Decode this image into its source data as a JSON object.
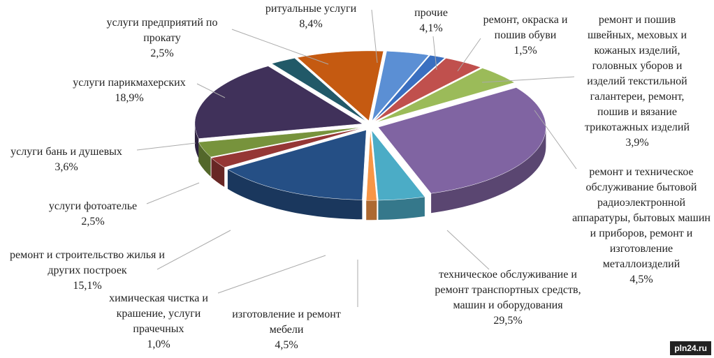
{
  "chart_data": {
    "type": "pie",
    "categories": [
      "прочие",
      "ремонт, окраска и пошив обуви",
      "ремонт и пошив швейных, меховых и кожаных изделий, головных уборов и изделий текстильной галантереи, ремонт, пошив и вязание трикотажных изделий",
      "ремонт и техническое обслуживание бытовой радиоэлектронной аппаратуры, бытовых машин и приборов, ремонт и изготовление металлоизделий",
      "техническое обслуживание и ремонт транспортных средств, машин и оборудования",
      "изготовление и ремонт мебели",
      "химическая чистка и крашение, услуги прачечных",
      "ремонт и строительство жилья и других построек",
      "услуги фотоателье",
      "услуги бань и душевых",
      "услуги парикмахерских",
      "услуги предприятий по прокату",
      "ритуальные услуги"
    ],
    "values": [
      4.1,
      1.5,
      3.9,
      4.5,
      29.5,
      4.5,
      1.0,
      15.1,
      2.5,
      3.6,
      18.9,
      2.5,
      8.4
    ],
    "value_labels": [
      "4,1%",
      "1,5%",
      "3,9%",
      "4,5%",
      "29,5%",
      "4,5%",
      "1,0%",
      "15,1%",
      "2,5%",
      "3,6%",
      "18,9%",
      "2,5%",
      "8,4%"
    ],
    "colors": [
      "#5b8fd4",
      "#3a6fc0",
      "#c0504d",
      "#9bbb59",
      "#8064a2",
      "#4bacc6",
      "#f79646",
      "#254f85",
      "#953735",
      "#77933c",
      "#40315a",
      "#215968",
      "#c55a11"
    ]
  },
  "watermark": "pln24.ru"
}
